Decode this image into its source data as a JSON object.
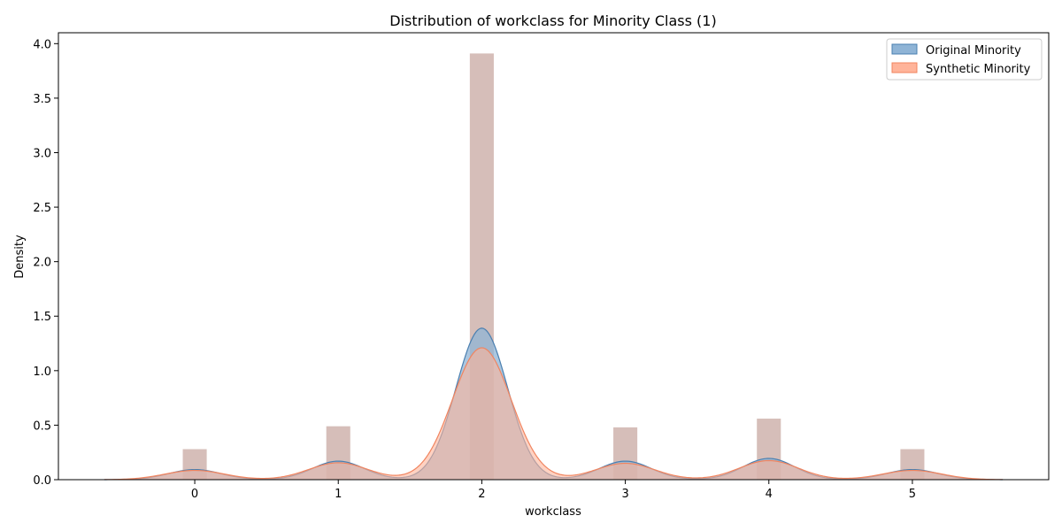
{
  "chart_data": {
    "type": "area",
    "title": "Distribution of workclass for Minority Class (1)",
    "xlabel": "workclass",
    "ylabel": "Density",
    "xlim": [
      -0.95,
      5.95
    ],
    "ylim": [
      0,
      4.1
    ],
    "xticks": [
      "0",
      "1",
      "2",
      "3",
      "4",
      "5"
    ],
    "yticks": [
      "0.0",
      "0.5",
      "1.0",
      "1.5",
      "2.0",
      "2.5",
      "3.0",
      "3.5",
      "4.0"
    ],
    "legend_position": "top-right",
    "histogram": {
      "bins": [
        {
          "x": 0,
          "value": 0.28
        },
        {
          "x": 1,
          "value": 0.49
        },
        {
          "x": 2,
          "value": 3.91
        },
        {
          "x": 3,
          "value": 0.48
        },
        {
          "x": 4,
          "value": 0.56
        },
        {
          "x": 5,
          "value": 0.28
        }
      ],
      "bin_width": 0.167,
      "color": "#c8a8a2"
    },
    "series": [
      {
        "name": "Original Minority",
        "fill": "#8fb4d6",
        "stroke": "#4a7fb0",
        "x_range": [
          -0.63,
          5.63
        ],
        "peaks": [
          {
            "x": 0,
            "height": 0.093
          },
          {
            "x": 1,
            "height": 0.17
          },
          {
            "x": 2,
            "height": 1.39
          },
          {
            "x": 3,
            "height": 0.17
          },
          {
            "x": 4,
            "height": 0.195
          },
          {
            "x": 5,
            "height": 0.093
          }
        ],
        "bandwidth": 0.18
      },
      {
        "name": "Synthetic Minority",
        "fill": "#ffb49a",
        "stroke": "#f0845f",
        "x_range": [
          -0.63,
          5.63
        ],
        "peaks": [
          {
            "x": 0,
            "height": 0.085
          },
          {
            "x": 1,
            "height": 0.155
          },
          {
            "x": 2,
            "height": 1.21
          },
          {
            "x": 3,
            "height": 0.15
          },
          {
            "x": 4,
            "height": 0.175
          },
          {
            "x": 5,
            "height": 0.085
          }
        ],
        "bandwidth": 0.205
      }
    ]
  }
}
